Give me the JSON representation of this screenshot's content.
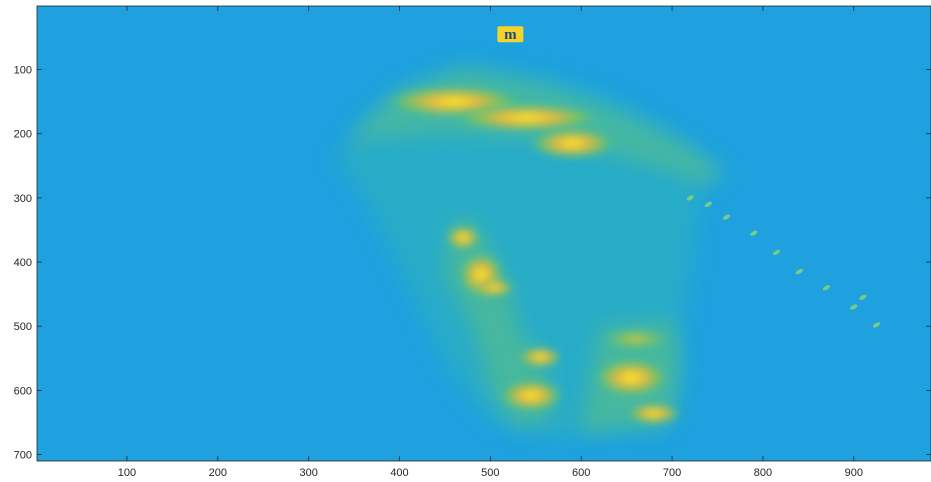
{
  "chart_data": {
    "type": "heatmap",
    "title": "",
    "xlabel": "",
    "ylabel": "",
    "xlim": [
      1,
      985
    ],
    "ylim": [
      1,
      710
    ],
    "y_direction": "reverse",
    "grid": false,
    "colormap": "parula",
    "background_color": "#1ea1de",
    "x_ticks": [
      100,
      200,
      300,
      400,
      500,
      600,
      700,
      800,
      900
    ],
    "x_tick_labels": [
      "100",
      "200",
      "300",
      "400",
      "500",
      "600",
      "700",
      "800",
      "900"
    ],
    "y_ticks": [
      100,
      200,
      300,
      400,
      500,
      600,
      700
    ],
    "y_tick_labels": [
      "100",
      "200",
      "300",
      "400",
      "500",
      "600",
      "700"
    ],
    "hotspots": [
      {
        "x": 460,
        "y": 150,
        "rx": 55,
        "ry": 18,
        "level": "high"
      },
      {
        "x": 540,
        "y": 175,
        "rx": 60,
        "ry": 16,
        "level": "high"
      },
      {
        "x": 590,
        "y": 215,
        "rx": 35,
        "ry": 18,
        "level": "high"
      },
      {
        "x": 470,
        "y": 362,
        "rx": 14,
        "ry": 14,
        "level": "high"
      },
      {
        "x": 490,
        "y": 420,
        "rx": 18,
        "ry": 26,
        "level": "high"
      },
      {
        "x": 505,
        "y": 440,
        "rx": 16,
        "ry": 10,
        "level": "high"
      },
      {
        "x": 555,
        "y": 548,
        "rx": 18,
        "ry": 12,
        "level": "high"
      },
      {
        "x": 545,
        "y": 608,
        "rx": 26,
        "ry": 18,
        "level": "high"
      },
      {
        "x": 655,
        "y": 580,
        "rx": 30,
        "ry": 22,
        "level": "high"
      },
      {
        "x": 680,
        "y": 636,
        "rx": 22,
        "ry": 12,
        "level": "high"
      },
      {
        "x": 660,
        "y": 520,
        "rx": 28,
        "ry": 12,
        "level": "medium"
      }
    ],
    "annotation": {
      "x": 522,
      "y": 45,
      "label": "m"
    }
  }
}
